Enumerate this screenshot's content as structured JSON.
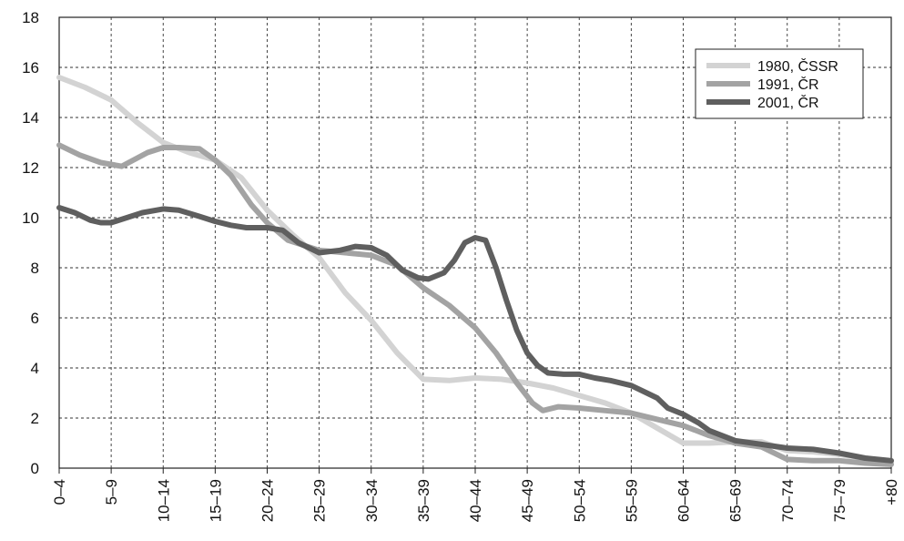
{
  "chart_data": {
    "type": "line",
    "title": "",
    "xlabel": "",
    "ylabel": "",
    "ylim": [
      0,
      18
    ],
    "yticks": [
      0,
      2,
      4,
      6,
      8,
      10,
      12,
      14,
      16,
      18
    ],
    "grid": true,
    "legend_position": "top-right",
    "x_tick_labels": [
      "0–4",
      "5–9",
      "10–14",
      "15–19",
      "20–24",
      "25–29",
      "30–34",
      "35–39",
      "40–44",
      "45–49",
      "50–54",
      "55–59",
      "60–64",
      "65–69",
      "70–74",
      "75–79",
      "+80"
    ],
    "series": [
      {
        "name": "1980, ČSSR",
        "color": "#d3d3d3",
        "points": [
          [
            0,
            15.6
          ],
          [
            0.5,
            15.2
          ],
          [
            1,
            14.7
          ],
          [
            1.5,
            13.8
          ],
          [
            2,
            13.0
          ],
          [
            2.5,
            12.6
          ],
          [
            3,
            12.3
          ],
          [
            3.5,
            11.6
          ],
          [
            4,
            10.3
          ],
          [
            4.5,
            9.3
          ],
          [
            5,
            8.4
          ],
          [
            5.5,
            7.0
          ],
          [
            6,
            5.9
          ],
          [
            6.5,
            4.6
          ],
          [
            7,
            3.55
          ],
          [
            7.5,
            3.5
          ],
          [
            8,
            3.6
          ],
          [
            8.5,
            3.55
          ],
          [
            9,
            3.4
          ],
          [
            9.5,
            3.2
          ],
          [
            10,
            2.9
          ],
          [
            10.5,
            2.6
          ],
          [
            11,
            2.2
          ],
          [
            11.5,
            1.6
          ],
          [
            12,
            1.0
          ],
          [
            12.5,
            1.0
          ],
          [
            13,
            1.05
          ],
          [
            13.5,
            1.05
          ],
          [
            14,
            0.7
          ],
          [
            14.5,
            0.65
          ],
          [
            15,
            0.55
          ],
          [
            15.5,
            0.4
          ],
          [
            16,
            0.25
          ]
        ]
      },
      {
        "name": "1991, ČR",
        "color": "#a3a3a3",
        "points": [
          [
            0,
            12.9
          ],
          [
            0.4,
            12.5
          ],
          [
            0.8,
            12.2
          ],
          [
            1.2,
            12.05
          ],
          [
            1.7,
            12.6
          ],
          [
            2,
            12.8
          ],
          [
            2.3,
            12.8
          ],
          [
            2.7,
            12.75
          ],
          [
            3,
            12.3
          ],
          [
            3.3,
            11.7
          ],
          [
            3.7,
            10.5
          ],
          [
            4,
            9.8
          ],
          [
            4.4,
            9.1
          ],
          [
            5,
            8.7
          ],
          [
            5.5,
            8.6
          ],
          [
            6,
            8.5
          ],
          [
            6.5,
            8.1
          ],
          [
            7,
            7.2
          ],
          [
            7.5,
            6.5
          ],
          [
            8,
            5.6
          ],
          [
            8.4,
            4.6
          ],
          [
            8.8,
            3.4
          ],
          [
            9.1,
            2.6
          ],
          [
            9.3,
            2.3
          ],
          [
            9.6,
            2.45
          ],
          [
            10,
            2.4
          ],
          [
            10.5,
            2.3
          ],
          [
            11,
            2.2
          ],
          [
            11.5,
            1.95
          ],
          [
            12,
            1.7
          ],
          [
            12.5,
            1.3
          ],
          [
            13,
            1.0
          ],
          [
            13.5,
            0.85
          ],
          [
            14,
            0.35
          ],
          [
            14.5,
            0.3
          ],
          [
            15,
            0.3
          ],
          [
            15.5,
            0.2
          ],
          [
            16,
            0.15
          ]
        ]
      },
      {
        "name": "2001, ČR",
        "color": "#5f5f5f",
        "points": [
          [
            0,
            10.4
          ],
          [
            0.3,
            10.2
          ],
          [
            0.6,
            9.9
          ],
          [
            0.8,
            9.8
          ],
          [
            1,
            9.8
          ],
          [
            1.3,
            10.0
          ],
          [
            1.6,
            10.2
          ],
          [
            2,
            10.35
          ],
          [
            2.3,
            10.3
          ],
          [
            2.7,
            10.05
          ],
          [
            3,
            9.85
          ],
          [
            3.3,
            9.7
          ],
          [
            3.6,
            9.6
          ],
          [
            4,
            9.6
          ],
          [
            4.3,
            9.5
          ],
          [
            4.6,
            9.0
          ],
          [
            5,
            8.6
          ],
          [
            5.4,
            8.7
          ],
          [
            5.7,
            8.85
          ],
          [
            6,
            8.8
          ],
          [
            6.3,
            8.5
          ],
          [
            6.6,
            7.9
          ],
          [
            6.9,
            7.6
          ],
          [
            7.1,
            7.55
          ],
          [
            7.4,
            7.8
          ],
          [
            7.6,
            8.3
          ],
          [
            7.8,
            9.0
          ],
          [
            8,
            9.2
          ],
          [
            8.2,
            9.1
          ],
          [
            8.4,
            8.0
          ],
          [
            8.6,
            6.7
          ],
          [
            8.8,
            5.5
          ],
          [
            9,
            4.6
          ],
          [
            9.2,
            4.1
          ],
          [
            9.4,
            3.8
          ],
          [
            9.7,
            3.75
          ],
          [
            10,
            3.75
          ],
          [
            10.3,
            3.6
          ],
          [
            10.6,
            3.5
          ],
          [
            11,
            3.3
          ],
          [
            11.3,
            3.0
          ],
          [
            11.5,
            2.8
          ],
          [
            11.7,
            2.4
          ],
          [
            12,
            2.15
          ],
          [
            12.3,
            1.8
          ],
          [
            12.5,
            1.5
          ],
          [
            13,
            1.1
          ],
          [
            13.5,
            0.95
          ],
          [
            14,
            0.8
          ],
          [
            14.5,
            0.75
          ],
          [
            15,
            0.6
          ],
          [
            15.5,
            0.4
          ],
          [
            16,
            0.3
          ]
        ]
      }
    ]
  }
}
